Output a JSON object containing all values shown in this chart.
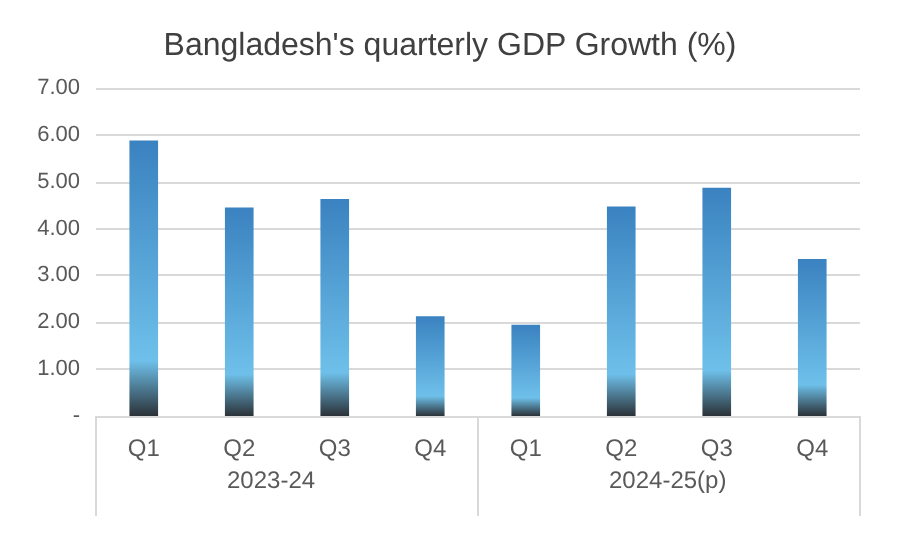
{
  "chart_data": {
    "type": "bar",
    "title": "Bangladesh's quarterly GDP Growth (%)",
    "categories": [
      "Q1",
      "Q2",
      "Q3",
      "Q4",
      "Q1",
      "Q2",
      "Q3",
      "Q4"
    ],
    "values": [
      5.88,
      4.45,
      4.63,
      2.13,
      1.95,
      4.47,
      4.87,
      3.35
    ],
    "color": "#3a82c0",
    "ylim": [
      0,
      7
    ],
    "yticks": [
      {
        "value": 0,
        "label": "-"
      },
      {
        "value": 1,
        "label": "1.00"
      },
      {
        "value": 2,
        "label": "2.00"
      },
      {
        "value": 3,
        "label": "3.00"
      },
      {
        "value": 4,
        "label": "4.00"
      },
      {
        "value": 5,
        "label": "5.00"
      },
      {
        "value": 6,
        "label": "6.00"
      },
      {
        "value": 7,
        "label": "7.00"
      }
    ],
    "grid": "y",
    "annotations": [
      "2023-24",
      "2024-25(p)"
    ]
  }
}
